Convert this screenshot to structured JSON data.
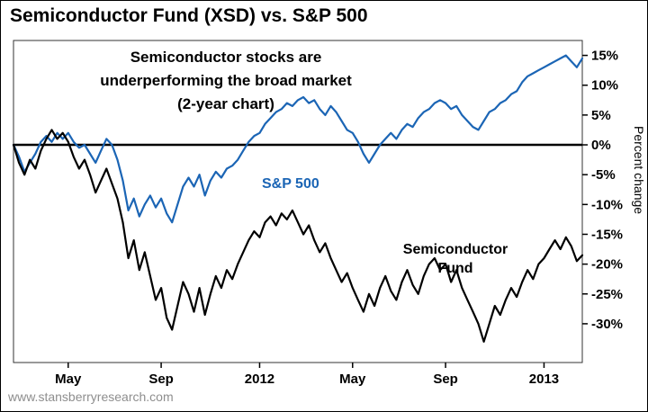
{
  "title": "Semiconductor Fund (XSD) vs. S&P 500",
  "footer": "www.stansberryresearch.com",
  "annotation": {
    "line1": "Semiconductor stocks are",
    "line2": "underperforming the broad market",
    "line3": "(2-year chart)"
  },
  "labels": {
    "sp500": "S&P 500",
    "semi_line1": "Semiconductor",
    "semi_line2": "Fund",
    "y_axis": "Percent change"
  },
  "colors": {
    "sp500": "#1b65b5",
    "fund": "#000000",
    "zero_line": "#000000",
    "axis": "#000000",
    "plot_border": "#333333",
    "footer_text": "#8e8e8e"
  },
  "chart_data": {
    "type": "line",
    "title": "Semiconductor Fund (XSD) vs. S&P 500",
    "ylabel": "Percent change",
    "ylim": [
      -36.5,
      17.5
    ],
    "grid": false,
    "x_unit": "weekly points over 2 years (early 2011 to early 2013)",
    "n_points": 105,
    "x_ticks": [
      {
        "label": "May",
        "index": 10
      },
      {
        "label": "Sep",
        "index": 27
      },
      {
        "label": "2012",
        "index": 45
      },
      {
        "label": "May",
        "index": 62
      },
      {
        "label": "Sep",
        "index": 79
      },
      {
        "label": "2013",
        "index": 97
      }
    ],
    "y_ticks": [
      15,
      10,
      5,
      0,
      -5,
      -10,
      -15,
      -20,
      -25,
      -30
    ],
    "zero_line": 0,
    "legend_position": "inline-labels",
    "series": [
      {
        "name": "S&P 500",
        "color": "#1b65b5",
        "values": [
          0,
          -2,
          -4.5,
          -3,
          -1.5,
          0.5,
          1.5,
          0.5,
          2,
          1,
          2,
          0.5,
          -0.5,
          0,
          -1.5,
          -3,
          -1,
          1,
          0,
          -2.5,
          -6,
          -11,
          -9,
          -12,
          -10,
          -8.5,
          -10.5,
          -9,
          -11.5,
          -13,
          -10,
          -7,
          -5.5,
          -7,
          -5,
          -8.5,
          -6,
          -4.5,
          -5.5,
          -4,
          -3.5,
          -2.5,
          -1,
          0.5,
          1.5,
          2,
          3.5,
          4.5,
          5.5,
          6,
          7,
          6.5,
          7.5,
          8,
          7,
          7.5,
          6,
          5,
          6.5,
          5.5,
          4,
          2.5,
          2,
          0.5,
          -1.5,
          -3,
          -1.5,
          0,
          1,
          2,
          1,
          2.5,
          3.5,
          3,
          4.5,
          5.5,
          6,
          7,
          7.5,
          7,
          6,
          6.5,
          5,
          4,
          3,
          2.5,
          4,
          5.5,
          6,
          7,
          7.5,
          8.5,
          9,
          10.5,
          11.5,
          12,
          12.5,
          13,
          13.5,
          14,
          14.5,
          15,
          14,
          13,
          14.5
        ]
      },
      {
        "name": "Semiconductor Fund",
        "color": "#000000",
        "values": [
          0,
          -3,
          -5,
          -2.5,
          -4,
          -1,
          1,
          2.5,
          1,
          2,
          0.5,
          -2,
          -4,
          -2.5,
          -5,
          -8,
          -6,
          -4,
          -6.5,
          -9,
          -13,
          -19,
          -16,
          -21,
          -18,
          -22,
          -26,
          -24,
          -29,
          -31,
          -27,
          -23,
          -25,
          -28,
          -24,
          -28.5,
          -25,
          -22,
          -24,
          -21,
          -22.5,
          -20,
          -18,
          -16,
          -14.5,
          -15.5,
          -13,
          -12,
          -13.5,
          -11.5,
          -12.5,
          -11,
          -13,
          -15,
          -13.5,
          -16,
          -18,
          -16.5,
          -19,
          -21,
          -23,
          -21.5,
          -24,
          -26,
          -28,
          -25,
          -27,
          -24,
          -22,
          -24.5,
          -26,
          -23,
          -21,
          -23.5,
          -25,
          -22,
          -20,
          -19,
          -21,
          -20,
          -23,
          -21,
          -24,
          -26,
          -28,
          -30,
          -33,
          -30,
          -27,
          -28.5,
          -26,
          -24,
          -25.5,
          -23,
          -21,
          -22.5,
          -20,
          -19,
          -17.5,
          -16,
          -17.5,
          -15.5,
          -17,
          -19.5,
          -18.5
        ]
      }
    ]
  }
}
